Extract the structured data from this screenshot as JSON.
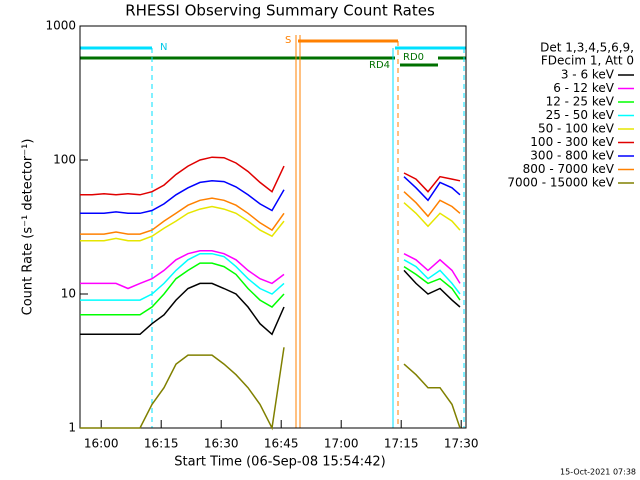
{
  "chart_data": {
    "type": "line",
    "title": "RHESSI Observing Summary Count Rates",
    "x_label": "Start Time (06-Sep-08 15:54:42)",
    "y_label": "Count Rate (s⁻¹ detector⁻¹)",
    "legend_header": [
      "Det 1,3,4,5,6,9,",
      "FDecim 1, Att 0"
    ],
    "annotations": [
      "N",
      "S",
      "RD0",
      "RD4"
    ],
    "footer": "15-Oct-2021 07:38",
    "log_y": true,
    "legend": "right",
    "xlim": [
      0,
      96.5
    ],
    "ylim": [
      1,
      1000
    ],
    "xticks": [
      {
        "value": 5.3,
        "label": "16:00"
      },
      {
        "value": 20.3,
        "label": "16:15"
      },
      {
        "value": 35.3,
        "label": "16:30"
      },
      {
        "value": 50.3,
        "label": "16:45"
      },
      {
        "value": 65.3,
        "label": "17:00"
      },
      {
        "value": 80.3,
        "label": "17:15"
      },
      {
        "value": 95.3,
        "label": "17:30"
      }
    ],
    "yticks": [
      1,
      10,
      100,
      1000
    ],
    "x": [
      0,
      3,
      6,
      9,
      12,
      15,
      18,
      21,
      24,
      27,
      30,
      33,
      36,
      39,
      42,
      45,
      48,
      51,
      66,
      81,
      84,
      87,
      90,
      93,
      95
    ],
    "series": [
      {
        "name": "3 - 6 keV",
        "color": "#000000",
        "values": [
          5,
          5,
          5,
          5,
          5,
          5,
          6,
          7,
          9,
          11,
          12,
          12,
          11,
          10,
          8,
          6,
          5,
          8,
          null,
          15,
          12,
          10,
          11,
          9,
          8
        ]
      },
      {
        "name": "6 - 12 keV",
        "color": "#ff00ff",
        "values": [
          12,
          12,
          12,
          12,
          11,
          12,
          13,
          15,
          18,
          20,
          21,
          21,
          20,
          18,
          15,
          13,
          12,
          14,
          null,
          20,
          18,
          15,
          18,
          15,
          12
        ]
      },
      {
        "name": "12 - 25 keV",
        "color": "#00ff00",
        "values": [
          7,
          7,
          7,
          7,
          7,
          7,
          8,
          10,
          13,
          15,
          17,
          17,
          16,
          14,
          11,
          9,
          8,
          10,
          null,
          16,
          14,
          12,
          13,
          11,
          9
        ]
      },
      {
        "name": "25 - 50 keV",
        "color": "#00ffff",
        "values": [
          9,
          9,
          9,
          9,
          9,
          9,
          10,
          12,
          15,
          18,
          20,
          20,
          19,
          16,
          13,
          11,
          10,
          12,
          null,
          18,
          16,
          13,
          15,
          12,
          10
        ]
      },
      {
        "name": "50 - 100 keV",
        "color": "#e6e600",
        "values": [
          25,
          25,
          25,
          26,
          25,
          25,
          27,
          31,
          35,
          40,
          43,
          45,
          43,
          40,
          35,
          30,
          27,
          35,
          null,
          48,
          40,
          32,
          40,
          35,
          30
        ]
      },
      {
        "name": "100 - 300 keV",
        "color": "#e00000",
        "values": [
          55,
          55,
          56,
          55,
          56,
          55,
          58,
          65,
          78,
          90,
          100,
          105,
          104,
          95,
          82,
          68,
          58,
          90,
          null,
          80,
          72,
          58,
          75,
          72,
          70
        ]
      },
      {
        "name": "300 - 800 keV",
        "color": "#0000ff",
        "values": [
          40,
          40,
          40,
          41,
          40,
          40,
          42,
          47,
          55,
          62,
          68,
          70,
          69,
          63,
          55,
          47,
          42,
          60,
          null,
          75,
          62,
          50,
          68,
          62,
          55
        ]
      },
      {
        "name": "800 - 7000 keV",
        "color": "#ff8000",
        "values": [
          28,
          28,
          28,
          29,
          28,
          28,
          30,
          35,
          40,
          46,
          50,
          52,
          50,
          46,
          40,
          34,
          30,
          40,
          null,
          58,
          48,
          38,
          50,
          45,
          40
        ]
      },
      {
        "name": "7000 - 15000 keV",
        "color": "#808000",
        "values": [
          1,
          1,
          1,
          1,
          1,
          1,
          1.5,
          2,
          3,
          3.5,
          3.5,
          3.5,
          3,
          2.5,
          2,
          1.5,
          1,
          4,
          null,
          3,
          2.5,
          2,
          2,
          1.5,
          1
        ]
      }
    ]
  }
}
